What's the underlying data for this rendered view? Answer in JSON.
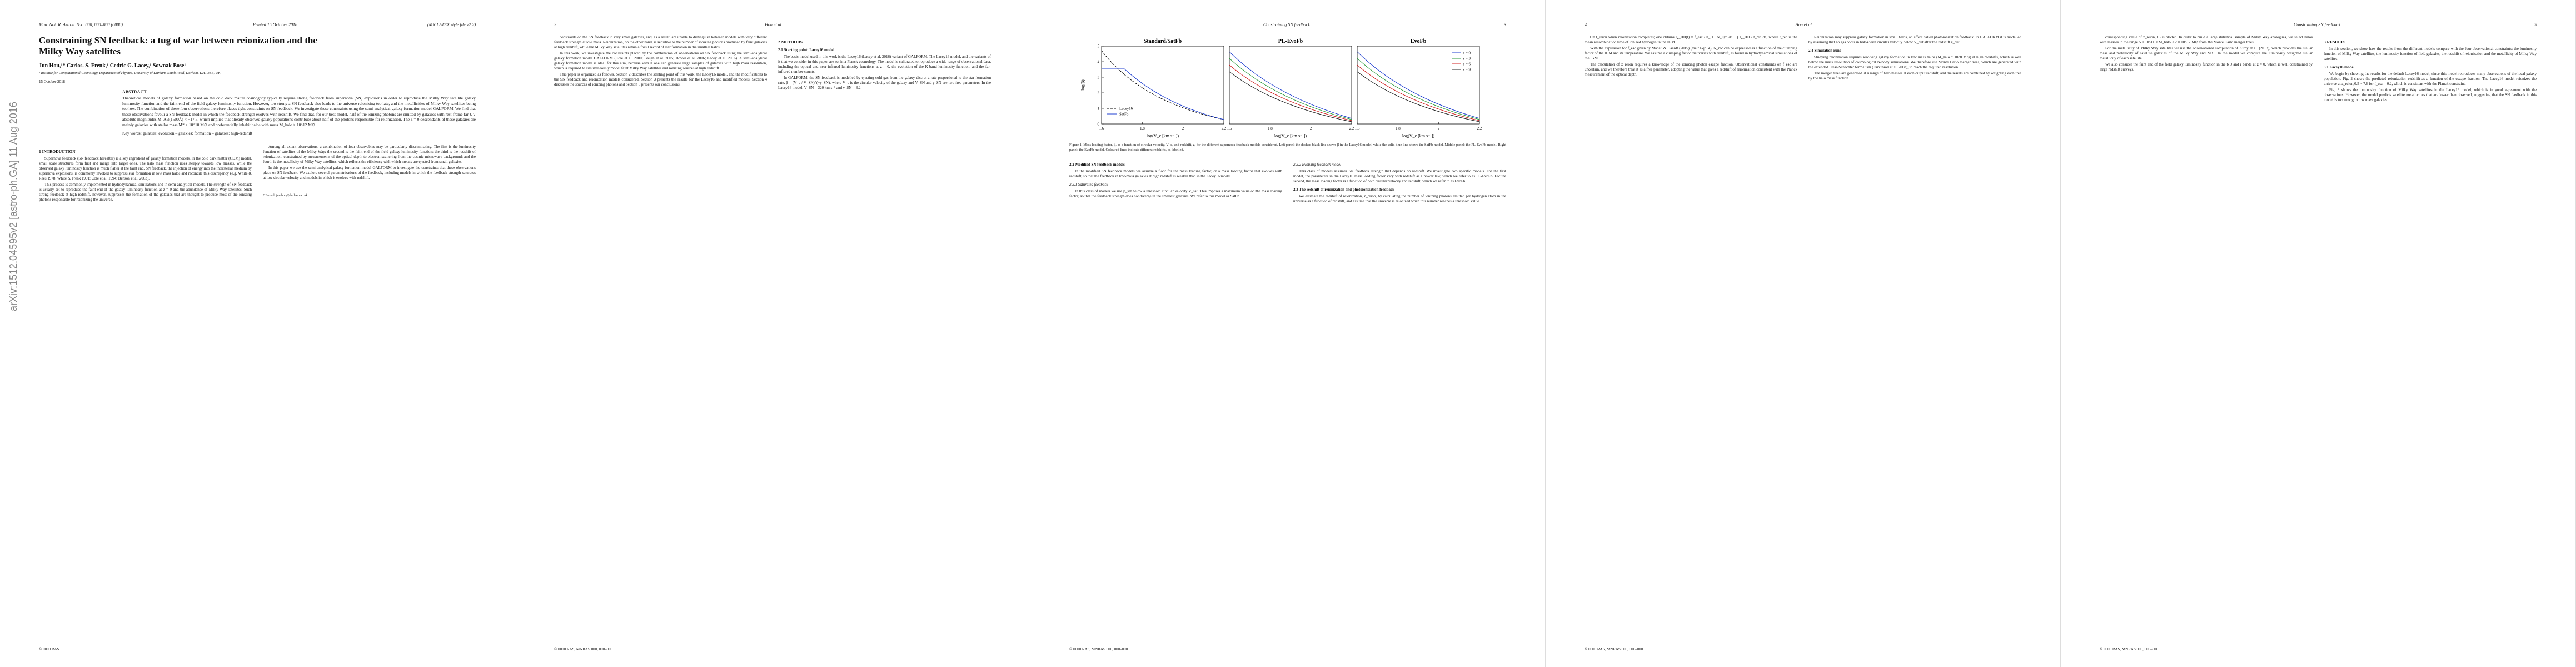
{
  "arxiv_stamp": "arXiv:1512.04595v2 [astro-ph.GA] 11 Aug 2016",
  "pages": [
    {
      "header_left": "Mon. Not. R. Astron. Soc. 000, 000–000 (0000)",
      "header_mid": "Printed 15 October 2018",
      "header_right": "(MN LATEX style file v2.2)",
      "top": [
        {
          "title": "Constraining SN feedback: a tug of war between reionization and the Milky Way satellites"
        },
        {
          "authors": "Jun Hou,¹* Carlos. S. Frenk,¹ Cedric G. Lacey,¹ Sownak Bose¹"
        },
        {
          "affil": "¹ Institute for Computational Cosmology, Department of Physics, University of Durham, South Road, Durham, DH1 3LE, UK"
        },
        {
          "date": "15 October 2018"
        },
        {
          "abstract_head": "ABSTRACT"
        },
        {
          "abstract": "Theoretical models of galaxy formation based on the cold dark matter cosmogony typically require strong feedback from supernova (SN) explosions in order to reproduce the Milky Way satellite galaxy luminosity function and the faint end of the field galaxy luminosity function. However, too strong a SN feedback also leads to the universe reionizing too late, and the metallicities of Milky Way satellites being too low. The combination of these four observations therefore places tight constraints on SN feedback. We investigate these constraints using the semi-analytical galaxy formation model GALFORM. We find that these observations favour a SN feedback model in which the feedback strength evolves with redshift. We find that, for our best model, half of the ionizing photons are emitted by galaxies with rest-frame far-UV absolute magnitudes M_AB(1500Å) < −17.5, which implies that already observed galaxy populations contribute about half of the photons responsible for reionization. The z = 0 descendants of these galaxies are mainly galaxies with stellar mass M* > 10^10 M⊙ and preferentially inhabit halos with mass M_halo > 10^12 M⊙."
        },
        {
          "keywords": "Key words: galaxies: evolution – galaxies: formation – galaxies: high-redshift"
        }
      ],
      "columns": [
        [
          {
            "heading": "1 INTRODUCTION"
          },
          {
            "text": "Supernova feedback (SN feedback hereafter) is a key ingredient of galaxy formation models. In the cold dark matter (CDM) model, small scale structures form first and merge into larger ones. The halo mass function rises steeply towards low masses, while the observed galaxy luminosity function is much flatter at the faint end. SN feedback, the injection of energy into the interstellar medium by supernova explosions, is commonly invoked to suppress star formation in low mass halos and reconcile this discrepancy (e.g. White & Rees 1978; White & Frenk 1991; Cole et al. 1994; Benson et al. 2003)."
          },
          {
            "text": "This process is commonly implemented in hydrodynamical simulations and in semi-analytical models. The strength of SN feedback is usually set to reproduce the faint end of the galaxy luminosity function at z = 0 and the abundance of Milky Way satellites. Such strong feedback at high redshift, however, suppresses the formation of the galaxies that are thought to produce most of the ionizing photons responsible for reionizing the universe."
          }
        ],
        [
          {
            "text": "Among all extant observations, a combination of four observables may be particularly discriminating. The first is the luminosity function of satellites of the Milky Way; the second is the faint end of the field galaxy luminosity function; the third is the redshift of reionization, constrained by measurements of the optical depth to electron scattering from the cosmic microwave background; and the fourth is the metallicity of Milky Way satellites, which reflects the efficiency with which metals are ejected from small galaxies."
          },
          {
            "text": "In this paper we use the semi-analytical galaxy formation model GALFORM to investigate the constraints that these observations place on SN feedback. We explore several parametrizations of the feedback, including models in which the feedback strength saturates at low circular velocity and models in which it evolves with redshift."
          },
          {
            "footnote": "* E-mail: jun.hou@durham.ac.uk"
          }
        ]
      ],
      "footer": "© 0000 RAS"
    },
    {
      "header_left": "2",
      "header_mid": "Hou et al.",
      "header_right": "",
      "columns": [
        [
          {
            "text": "constraints on the SN feedback in very small galaxies, and, as a result, are unable to distinguish between models with very different feedback strength at low mass. Reionization, on the other hand, is sensitive to the number of ionizing photons produced by faint galaxies at high redshift, while the Milky Way satellites retain a fossil record of star formation in the smallest halos."
          },
          {
            "text": "In this work, we investigate the constraints placed by the combination of observations on SN feedback using the semi-analytical galaxy formation model GALFORM (Cole et al. 2000; Baugh et al. 2005; Bower et al. 2006; Lacey et al. 2016). A semi-analytical galaxy formation model is ideal for this aim, because with it one can generate large samples of galaxies with high mass resolution, which is required to simultaneously model faint Milky Way satellites and ionizing sources at high redshift."
          },
          {
            "text": "This paper is organized as follows. Section 2 describes the starting point of this work, the Lacey16 model, and the modifications to the SN feedback and reionization models considered. Section 3 presents the results for the Lacey16 and modified models. Section 4 discusses the sources of ionizing photons and Section 5 presents our conclusions."
          }
        ],
        [
          {
            "heading": "2 METHODS"
          },
          {
            "subheading": "2.1 Starting point: Lacey16 model"
          },
          {
            "text": "The basic model used in this work is the Lacey16 (Lacey et al. 2016) variant of GALFORM. The Lacey16 model, and the variants of it that we consider in this paper, are set in a Planck cosmology. The model is calibrated to reproduce a wide range of observational data, including the optical and near-infrared luminosity functions at z = 0, the evolution of the K-band luminosity function, and the far-infrared number counts."
          },
          {
            "text": "In GALFORM, the SN feedback is modelled by ejecting cold gas from the galaxy disc at a rate proportional to the star formation rate, β = (V_c / V_SN)^(−γ_SN), where V_c is the circular velocity of the galaxy and V_SN and γ_SN are two free parameters. In the Lacey16 model, V_SN = 320 km s⁻¹ and γ_SN = 3.2."
          }
        ]
      ],
      "footer": "© 0000 RAS, MNRAS 000, 000–000"
    },
    {
      "header_left": "",
      "header_mid": "Constraining SN feedback",
      "header_right": "3",
      "top": [
        {
          "figure": {
            "panels": [
              "Standard/SatFb",
              "PL-EvoFb",
              "EvoFb"
            ],
            "ylabel": "log(β)",
            "xlabel": "log(V_c [km s⁻¹])",
            "yticks": [
              0,
              1,
              2,
              3,
              4,
              5
            ],
            "xticks": [
              1.6,
              1.8,
              2.0,
              2.2
            ],
            "legend1": [
              "Lacey16",
              "SatFb"
            ],
            "legend2": [
              "z = 0",
              "z = 3",
              "z = 6",
              "z = 9"
            ]
          }
        },
        {
          "caption": "Figure 1. Mass loading factor, β, as a function of circular velocity, V_c, and redshift, z, for the different supernova feedback models considered. Left panel: the dashed black line shows β in the Lacey16 model, while the solid blue line shows the SatFb model. Middle panel: the PL-EvoFb model. Right panel: the EvoFb model. Coloured lines indicate different redshifts, as labelled."
        }
      ],
      "columns": [
        [
          {
            "subheading": "2.2 Modified SN feedback models"
          },
          {
            "text": "In the modified SN feedback models we assume a floor for the mass loading factor, or a mass loading factor that evolves with redshift, so that the feedback in low-mass galaxies at high redshift is weaker than in the Lacey16 model."
          },
          {
            "subsubheading": "2.2.1 Saturated feedback"
          },
          {
            "text": "In this class of models we use β_sat below a threshold circular velocity V_sat. This imposes a maximum value on the mass loading factor, so that the feedback strength does not diverge in the smallest galaxies. We refer to this model as SatFb."
          }
        ],
        [
          {
            "subsubheading": "2.2.2 Evolving feedback model"
          },
          {
            "text": "This class of models assumes SN feedback strength that depends on redshift. We investigate two specific models. For the first model, the parameters in the Lacey16 mass loading factor vary with redshift as a power law, which we refer to as PL-EvoFb. For the second, the mass loading factor is a function of both circular velocity and redshift, which we refer to as EvoFb."
          },
          {
            "subheading": "2.3 The redshift of reionization and photoionization feedback"
          },
          {
            "text": "We estimate the redshift of reionization, z_reion, by calculating the number of ionizing photons emitted per hydrogen atom in the universe as a function of redshift, and assume that the universe is reionized when this number reaches a threshold value."
          }
        ]
      ],
      "footer": "© 0000 RAS, MNRAS 000, 000–000"
    },
    {
      "header_left": "4",
      "header_mid": "Hou et al.",
      "header_right": "",
      "columns": [
        [
          {
            "text": "t = t_reion when reionization completes; one obtains Q_HII(t) = f_esc / n̄_H ∫ Ṅ_Lyc dt' − ∫ Q_HII / t_rec dt', where t_rec is the mean recombination time of ionized hydrogen in the IGM."
          },
          {
            "text": "With the expression for f_esc given by Madau & Haardt (2015) (their Eqn. 4), N_rec can be expressed as a function of the clumping factor of the IGM and its temperature. We assume a clumping factor that varies with redshift, as found in hydrodynamical simulations of the IGM."
          },
          {
            "text": "The calculation of z_reion requires a knowledge of the ionizing photon escape fraction. Observational constraints on f_esc are uncertain, and we therefore treat it as a free parameter, adopting the value that gives a redshift of reionization consistent with the Planck measurement of the optical depth."
          }
        ],
        [
          {
            "text": "Reionization may suppress galaxy formation in small halos, an effect called photoionization feedback. In GALFORM it is modelled by assuming that no gas cools in halos with circular velocity below V_cut after the redshift z_cut."
          },
          {
            "subheading": "2.4 Simulation runs"
          },
          {
            "text": "Studying reionization requires resolving galaxy formation in low mass halos (M_halo ~ 10^8 M⊙) at high redshifts, which is well below the mass resolution of cosmological N-body simulations. We therefore use Monte Carlo merger trees, which are generated with the extended Press-Schechter formalism (Parkinson et al. 2008), to reach the required resolution."
          },
          {
            "text": "The merger trees are generated at a range of halo masses at each output redshift, and the results are combined by weighting each tree by the halo mass function."
          }
        ]
      ],
      "footer": "© 0000 RAS, MNRAS 000, 000–000"
    },
    {
      "header_left": "",
      "header_mid": "Constraining SN feedback",
      "header_right": "5",
      "columns": [
        [
          {
            "text": "corresponding value of z_reion,0.5 is plotted. In order to build a large statistical sample of Milky Way analogues, we select halos with masses in the range 5 × 10^11 < M_halo < 2 × 10^12 M⊙ from the Monte Carlo merger trees."
          },
          {
            "text": "For the metallicity of Milky Way satellites we use the observational compilation of Kirby et al. (2013), which provides the stellar mass and metallicity of satellite galaxies of the Milky Way and M31. In the model we compute the luminosity weighted stellar metallicity of each satellite."
          },
          {
            "text": "We also consider the faint end of the field galaxy luminosity function in the b_J and r bands at z = 0, which is well constrained by large redshift surveys."
          }
        ],
        [
          {
            "heading": "3 RESULTS"
          },
          {
            "text": "In this section, we show how the results from the different models compare with the four observational constraints: the luminosity function of Milky Way satellites, the luminosity function of field galaxies, the redshift of reionization and the metallicity of Milky Way satellites."
          },
          {
            "subheading": "3.1 Lacey16 model"
          },
          {
            "text": "We begin by showing the results for the default Lacey16 model, since this model reproduces many observations of the local galaxy population. Fig. 2 shows the predicted reionization redshift as a function of the escape fraction. The Lacey16 model reionizes the universe at z_reion,0.5 ≈ 7.6 for f_esc = 0.2, which is consistent with the Planck constraint."
          },
          {
            "text": "Fig. 3 shows the luminosity function of Milky Way satellites in the Lacey16 model, which is in good agreement with the observations. However, the model predicts satellite metallicities that are lower than observed, suggesting that the SN feedback in this model is too strong in low mass galaxies."
          }
        ]
      ],
      "footer": "© 0000 RAS, MNRAS 000, 000–000"
    }
  ]
}
